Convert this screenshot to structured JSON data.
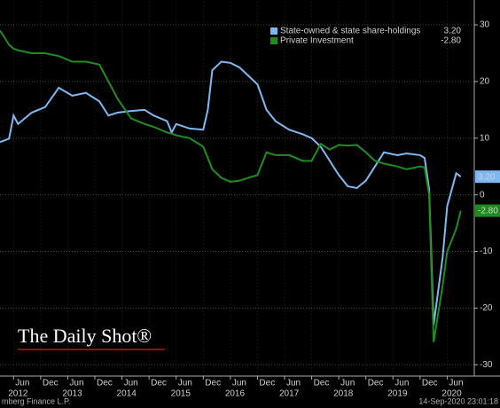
{
  "chart_data": {
    "type": "line",
    "x": [
      "2012-03",
      "2012-05",
      "2012-06",
      "2012-07",
      "2012-10",
      "2013-01",
      "2013-04",
      "2013-07",
      "2013-10",
      "2014-01",
      "2014-03",
      "2014-05",
      "2014-08",
      "2014-11",
      "2015-01",
      "2015-04",
      "2015-05",
      "2015-06",
      "2015-09",
      "2015-12",
      "2016-01",
      "2016-02",
      "2016-04",
      "2016-06",
      "2016-08",
      "2016-10",
      "2016-12",
      "2017-02",
      "2017-04",
      "2017-07",
      "2017-10",
      "2017-12",
      "2018-02",
      "2018-04",
      "2018-06",
      "2018-08",
      "2018-10",
      "2018-12",
      "2019-02",
      "2019-04",
      "2019-07",
      "2019-09",
      "2019-12",
      "2020-01",
      "2020-02",
      "2020-03",
      "2020-05",
      "2020-06",
      "2020-08",
      "2020-09"
    ],
    "series": [
      {
        "name": "State-owned & state share-holdings",
        "color": "#7fb8f0",
        "last_value_label": "3.20",
        "values": [
          9.3,
          9.9,
          14,
          12.5,
          14.5,
          15.5,
          18.9,
          17.5,
          18,
          16.5,
          14,
          14.5,
          14.8,
          15,
          14,
          13,
          11,
          12.5,
          11.7,
          11.5,
          15,
          22,
          23.5,
          23.3,
          22.5,
          21,
          19.5,
          15,
          13,
          11.5,
          10.7,
          10,
          8.5,
          6,
          3.5,
          1.5,
          1.2,
          2.5,
          5,
          7.5,
          7,
          7.3,
          7,
          6.5,
          1,
          -23,
          -11,
          -2,
          3.8,
          3.2
        ]
      },
      {
        "name": "Private Investment",
        "color": "#1e8c1e",
        "last_value_label": "-2.80",
        "values": [
          29,
          26.5,
          25.8,
          25.5,
          25,
          25,
          24.5,
          23.5,
          23.5,
          23,
          20,
          17,
          13.5,
          12.5,
          12,
          11,
          10.8,
          10.5,
          10,
          8.5,
          6.5,
          4.5,
          3,
          2.3,
          2.5,
          3,
          3.5,
          7.5,
          7,
          7,
          6,
          6,
          9,
          8,
          8.8,
          8.7,
          8.8,
          7.5,
          6,
          5.5,
          5,
          4.5,
          5,
          4.8,
          0,
          -26,
          -16,
          -10,
          -6,
          -2.8
        ]
      }
    ],
    "xlim": [
      "2012-03",
      "2020-12"
    ],
    "xticks": [
      {
        "value": "2012-06",
        "label": "Jun"
      },
      {
        "value": "2012-12",
        "label": "Dec"
      },
      {
        "value": "2013-06",
        "label": "Jun"
      },
      {
        "value": "2013-12",
        "label": "Dec"
      },
      {
        "value": "2014-06",
        "label": "Jun"
      },
      {
        "value": "2014-12",
        "label": "Dec"
      },
      {
        "value": "2015-06",
        "label": "Jun"
      },
      {
        "value": "2015-12",
        "label": "Dec"
      },
      {
        "value": "2016-06",
        "label": "Jun"
      },
      {
        "value": "2016-12",
        "label": "Dec"
      },
      {
        "value": "2017-06",
        "label": "Jun"
      },
      {
        "value": "2017-12",
        "label": "Dec"
      },
      {
        "value": "2018-06",
        "label": "Jun"
      },
      {
        "value": "2018-12",
        "label": "Dec"
      },
      {
        "value": "2019-06",
        "label": "Jun"
      },
      {
        "value": "2019-12",
        "label": "Dec"
      },
      {
        "value": "2020-06",
        "label": "Jun"
      }
    ],
    "years": [
      "2012",
      "2013",
      "2014",
      "2015",
      "2016",
      "2017",
      "2018",
      "2019",
      "2020"
    ],
    "ylim": [
      -32,
      34
    ],
    "yticks": [
      -30,
      -20,
      -10,
      0,
      10,
      20,
      30
    ],
    "grid": true,
    "legend": "top-right",
    "watermark": "The Daily Shot®",
    "footer_left": "mberg Finance L.P.",
    "footer_right": "14-Sep-2020 23:01:18"
  }
}
